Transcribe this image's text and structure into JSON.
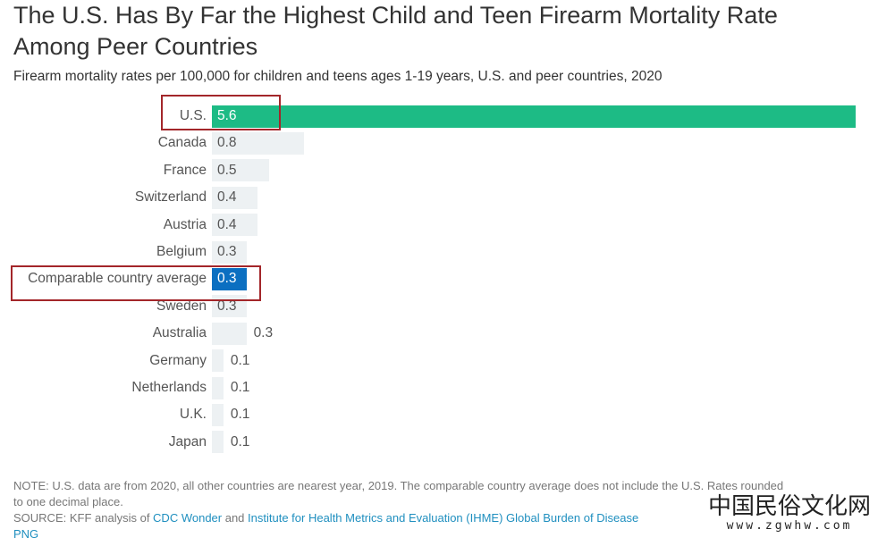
{
  "title": "The U.S. Has By Far the Highest Child and Teen Firearm Mortality Rate Among Peer Countries",
  "subtitle": "Firearm mortality rates per 100,000 for children and teens ages 1-19 years, U.S. and peer countries, 2020",
  "chart_data": {
    "type": "bar",
    "orientation": "horizontal",
    "categories": [
      "U.S.",
      "Canada",
      "France",
      "Switzerland",
      "Austria",
      "Belgium",
      "Comparable country average",
      "Sweden",
      "Australia",
      "Germany",
      "Netherlands",
      "U.K.",
      "Japan"
    ],
    "values": [
      5.6,
      0.8,
      0.5,
      0.4,
      0.4,
      0.3,
      0.3,
      0.3,
      0.3,
      0.1,
      0.1,
      0.1,
      0.1
    ],
    "highlighted": [
      "U.S.",
      "Comparable country average"
    ],
    "colors": {
      "U.S.": "#1dbb85",
      "Comparable country average": "#0b6fc1",
      "default": "#edf1f3"
    },
    "xlim": [
      0,
      5.6
    ],
    "grid": false
  },
  "notes": {
    "note": "NOTE: U.S. data are from 2020, all other countries are nearest year, 2019. The comparable country average does not include the U.S. Rates rounded to one decimal place.",
    "source_prefix": "SOURCE: KFF analysis of ",
    "source_link1": "CDC Wonder",
    "source_and": " and ",
    "source_link2": "Institute for Health Metrics and Evaluation (IHME) Global Burden of Disease",
    "png": "PNG"
  },
  "watermark": {
    "text": "中国民俗文化网",
    "url": "www.zgwhw.com"
  }
}
